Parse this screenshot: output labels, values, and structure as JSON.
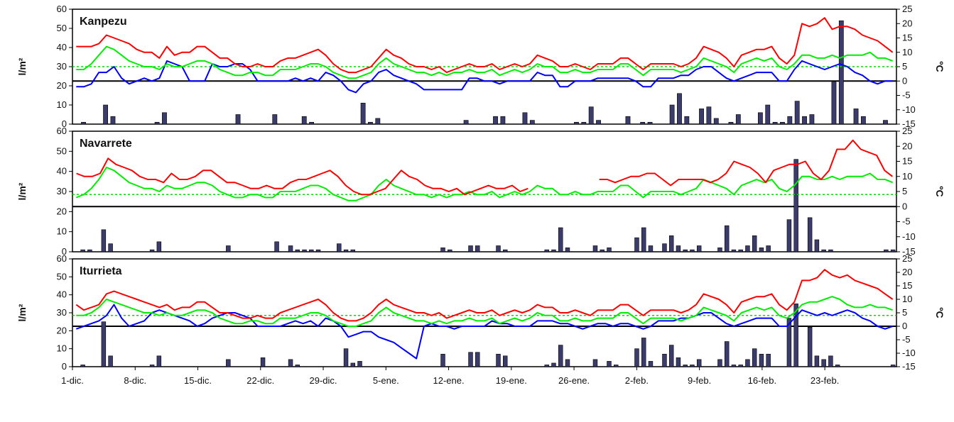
{
  "figure": {
    "x_axis_labels": [
      "1-dic.",
      "8-dic.",
      "15-dic.",
      "22-dic.",
      "29-dic.",
      "5-ene.",
      "12-ene.",
      "19-ene.",
      "26-ene.",
      "2-feb.",
      "9-feb.",
      "16-feb.",
      "23-feb."
    ]
  },
  "colors": {
    "tmax": "#ff0000",
    "tmean": "#00ee00",
    "tmin": "#0000ff",
    "tnormal": "#00dd00",
    "bar": "#3c3c6c",
    "axis": "#000000"
  },
  "chart_data": [
    {
      "type": "bar+line",
      "title": "Kanpezu",
      "ylabel": "l/m²",
      "y2label": "ºC",
      "ylim": [
        0,
        60
      ],
      "y2lim": [
        -15,
        25
      ],
      "yticks": [
        0,
        10,
        20,
        30,
        40,
        50,
        60
      ],
      "y2ticks": [
        -15,
        -10,
        -5,
        0,
        5,
        10,
        15,
        20,
        25
      ],
      "x_start": "1-dic.",
      "x_days": 92,
      "precip": [
        0,
        1,
        0,
        0,
        10,
        4,
        0,
        0,
        0,
        0,
        0,
        1,
        6,
        0,
        0,
        0,
        0,
        0,
        0,
        0,
        0,
        0,
        5,
        0,
        0,
        0,
        0,
        5,
        0,
        0,
        0,
        4,
        1,
        0,
        0,
        0,
        0,
        0,
        0,
        11,
        1,
        3,
        0,
        0,
        0,
        0,
        0,
        0,
        0,
        0,
        0,
        0,
        0,
        2,
        0,
        0,
        0,
        4,
        4,
        0,
        0,
        6,
        2,
        0,
        0,
        0,
        0,
        0,
        1,
        1,
        9,
        2,
        0,
        0,
        0,
        4,
        0,
        1,
        1,
        0,
        0,
        10,
        16,
        4,
        0,
        8,
        9,
        3,
        0,
        1,
        5,
        0,
        0,
        6,
        10,
        1,
        1,
        4,
        12,
        4,
        5,
        0,
        0,
        22,
        54,
        0,
        8,
        4,
        0,
        0,
        2,
        0
      ],
      "tmax": [
        12,
        12,
        12,
        13,
        16,
        15,
        14,
        13,
        11,
        10,
        10,
        8,
        12,
        9,
        10,
        10,
        12,
        12,
        10,
        8,
        8,
        6,
        5,
        5,
        6,
        5,
        5,
        7,
        8,
        8,
        9,
        10,
        11,
        9,
        6,
        4,
        3,
        3,
        4,
        5,
        8,
        11,
        9,
        8,
        6,
        5,
        5,
        4,
        5,
        3,
        4,
        5,
        6,
        5,
        5,
        6,
        4,
        5,
        6,
        5,
        6,
        9,
        8,
        7,
        5,
        5,
        6,
        5,
        4,
        6,
        6,
        6,
        8,
        8,
        6,
        4,
        6,
        6,
        6,
        6,
        5,
        6,
        8,
        12,
        11,
        10,
        8,
        5,
        9,
        10,
        11,
        11,
        12,
        8,
        6,
        9,
        20,
        19,
        20,
        22,
        18,
        19,
        19,
        18,
        16,
        15,
        14,
        12,
        10
      ],
      "tmean": [
        4,
        4,
        6,
        9,
        12,
        11,
        9,
        7,
        6,
        5,
        5,
        4,
        6,
        5,
        5,
        6,
        7,
        7,
        6,
        4,
        3,
        2,
        2,
        3,
        3,
        2,
        2,
        4,
        4,
        4,
        5,
        6,
        6,
        5,
        3,
        2,
        1,
        1,
        2,
        3,
        6,
        8,
        6,
        5,
        4,
        3,
        3,
        2,
        3,
        2,
        3,
        3,
        4,
        3,
        3,
        4,
        2,
        3,
        4,
        3,
        4,
        6,
        5,
        5,
        3,
        3,
        4,
        3,
        3,
        4,
        4,
        4,
        6,
        6,
        4,
        2,
        4,
        4,
        4,
        4,
        3,
        4,
        5,
        8,
        7,
        6,
        5,
        3,
        6,
        7,
        8,
        7,
        8,
        5,
        4,
        6,
        9,
        9,
        8,
        8,
        9,
        8,
        9,
        9,
        9,
        10,
        8,
        8,
        7
      ],
      "tmin": [
        -2,
        -2,
        -1,
        3,
        3,
        5,
        1,
        -1,
        0,
        1,
        0,
        1,
        7,
        6,
        5,
        0,
        0,
        0,
        6,
        5,
        5,
        6,
        6,
        4,
        0,
        0,
        0,
        0,
        0,
        1,
        0,
        1,
        0,
        3,
        2,
        0,
        -3,
        -4,
        -1,
        0,
        3,
        4,
        2,
        1,
        0,
        -1,
        -3,
        -3,
        -3,
        -3,
        -3,
        -3,
        1,
        1,
        0,
        0,
        -1,
        0,
        0,
        0,
        0,
        3,
        2,
        2,
        -2,
        -2,
        0,
        0,
        0,
        1,
        1,
        1,
        1,
        1,
        0,
        -2,
        -2,
        1,
        1,
        1,
        2,
        2,
        4,
        5,
        5,
        3,
        1,
        0,
        1,
        2,
        3,
        3,
        3,
        0,
        0,
        4,
        7,
        6,
        5,
        4,
        5,
        6,
        5,
        3,
        2,
        0,
        -1,
        0,
        0
      ],
      "tnormal": 5
    },
    {
      "type": "bar+line",
      "title": "Navarrete",
      "ylabel": "l/m²",
      "y2label": "ºC",
      "ylim": [
        0,
        60
      ],
      "y2lim": [
        -15,
        25
      ],
      "yticks": [
        0,
        10,
        20,
        30,
        40,
        50,
        60
      ],
      "y2ticks": [
        -15,
        -10,
        -5,
        0,
        5,
        10,
        15,
        20,
        25
      ],
      "x_start": "1-dic.",
      "x_days": 92,
      "precip": [
        0,
        1,
        1,
        0,
        11,
        4,
        0,
        0,
        0,
        0,
        0,
        1,
        5,
        0,
        0,
        0,
        0,
        0,
        0,
        0,
        0,
        0,
        3,
        0,
        0,
        0,
        0,
        0,
        0,
        5,
        0,
        3,
        1,
        1,
        1,
        1,
        0,
        0,
        4,
        1,
        1,
        0,
        0,
        0,
        0,
        0,
        0,
        0,
        0,
        0,
        0,
        0,
        0,
        2,
        1,
        0,
        0,
        3,
        3,
        0,
        0,
        3,
        1,
        0,
        0,
        0,
        0,
        0,
        1,
        1,
        12,
        2,
        0,
        0,
        0,
        3,
        1,
        2,
        0,
        0,
        0,
        7,
        12,
        3,
        0,
        4,
        8,
        3,
        1,
        1,
        3,
        0,
        0,
        2,
        13,
        1,
        1,
        3,
        8,
        2,
        3,
        0,
        0,
        16,
        46,
        0,
        17,
        6,
        1,
        1,
        0,
        0,
        0,
        0,
        0,
        0,
        0,
        1,
        1
      ],
      "tmax": [
        11,
        10,
        10,
        11,
        16,
        14,
        13,
        12,
        10,
        9,
        9,
        8,
        11,
        9,
        9,
        10,
        12,
        12,
        10,
        8,
        8,
        7,
        6,
        6,
        7,
        6,
        6,
        8,
        9,
        9,
        10,
        11,
        12,
        10,
        7,
        5,
        4,
        4,
        5,
        6,
        9,
        12,
        10,
        9,
        7,
        6,
        6,
        5,
        6,
        4,
        5,
        6,
        7,
        6,
        6,
        7,
        5,
        6,
        null,
        null,
        null,
        null,
        null,
        null,
        null,
        null,
        9,
        9,
        8,
        9,
        10,
        10,
        11,
        11,
        9,
        7,
        9,
        9,
        9,
        9,
        8,
        9,
        11,
        15,
        14,
        13,
        11,
        8,
        12,
        13,
        14,
        14,
        15,
        11,
        9,
        12,
        19,
        19,
        22,
        19,
        18,
        17,
        12,
        10
      ],
      "tmean": [
        3,
        4,
        6,
        9,
        13,
        12,
        10,
        8,
        7,
        6,
        6,
        5,
        7,
        6,
        6,
        7,
        8,
        8,
        7,
        5,
        4,
        3,
        3,
        4,
        4,
        3,
        3,
        5,
        5,
        5,
        6,
        7,
        7,
        6,
        4,
        3,
        2,
        2,
        3,
        4,
        7,
        9,
        7,
        6,
        5,
        4,
        4,
        3,
        4,
        3,
        4,
        4,
        5,
        4,
        4,
        5,
        3,
        4,
        5,
        4,
        5,
        7,
        6,
        6,
        4,
        4,
        5,
        4,
        4,
        5,
        5,
        5,
        7,
        7,
        5,
        3,
        5,
        5,
        5,
        5,
        4,
        5,
        6,
        9,
        8,
        7,
        6,
        4,
        7,
        8,
        9,
        8,
        9,
        6,
        5,
        7,
        10,
        10,
        9,
        9,
        10,
        9,
        10,
        10,
        10,
        11,
        9,
        9,
        8
      ],
      "tnormal": 4
    },
    {
      "type": "bar+line",
      "title": "Iturrieta",
      "ylabel": "l/m²",
      "y2label": "ºC",
      "ylim": [
        0,
        60
      ],
      "y2lim": [
        -15,
        25
      ],
      "yticks": [
        0,
        10,
        20,
        30,
        40,
        50,
        60
      ],
      "y2ticks": [
        -15,
        -10,
        -5,
        0,
        5,
        10,
        15,
        20,
        25
      ],
      "x_start": "1-dic.",
      "x_days": 92,
      "precip": [
        0,
        1,
        0,
        0,
        25,
        6,
        0,
        0,
        0,
        0,
        0,
        1,
        6,
        0,
        0,
        0,
        0,
        0,
        0,
        0,
        0,
        0,
        4,
        0,
        0,
        0,
        0,
        5,
        0,
        0,
        0,
        4,
        1,
        0,
        0,
        0,
        0,
        0,
        0,
        10,
        2,
        3,
        0,
        0,
        0,
        0,
        0,
        0,
        0,
        0,
        0,
        0,
        0,
        7,
        0,
        0,
        0,
        8,
        8,
        0,
        0,
        7,
        6,
        0,
        0,
        0,
        0,
        0,
        1,
        2,
        12,
        4,
        0,
        0,
        0,
        4,
        0,
        3,
        1,
        0,
        0,
        10,
        16,
        3,
        0,
        7,
        12,
        5,
        1,
        1,
        4,
        0,
        0,
        4,
        14,
        1,
        1,
        4,
        10,
        7,
        7,
        0,
        0,
        27,
        35,
        0,
        22,
        6,
        4,
        6,
        1,
        0,
        0,
        0,
        0,
        0,
        0,
        0,
        1
      ],
      "tmax": [
        8,
        6,
        7,
        8,
        12,
        13,
        12,
        11,
        10,
        9,
        8,
        7,
        8,
        6,
        7,
        7,
        9,
        9,
        7,
        5,
        5,
        4,
        3,
        3,
        4,
        3,
        3,
        5,
        6,
        7,
        8,
        9,
        10,
        8,
        5,
        3,
        2,
        2,
        3,
        5,
        8,
        10,
        8,
        7,
        6,
        5,
        5,
        4,
        5,
        3,
        4,
        5,
        6,
        5,
        5,
        6,
        4,
        5,
        6,
        5,
        6,
        8,
        7,
        7,
        5,
        5,
        6,
        5,
        4,
        6,
        6,
        6,
        8,
        8,
        6,
        4,
        6,
        6,
        6,
        6,
        5,
        6,
        8,
        12,
        11,
        10,
        8,
        5,
        9,
        10,
        11,
        11,
        12,
        8,
        6,
        9,
        17,
        17,
        18,
        21,
        19,
        18,
        19,
        17,
        16,
        15,
        14,
        12,
        10
      ],
      "tmean": [
        4,
        4,
        5,
        7,
        10,
        9,
        8,
        7,
        6,
        5,
        5,
        4,
        5,
        4,
        4,
        5,
        6,
        6,
        5,
        3,
        2,
        1,
        1,
        2,
        2,
        1,
        1,
        3,
        3,
        3,
        4,
        5,
        5,
        4,
        2,
        1,
        0,
        0,
        1,
        2,
        5,
        7,
        5,
        4,
        3,
        2,
        2,
        1,
        2,
        1,
        2,
        2,
        3,
        2,
        2,
        3,
        1,
        2,
        3,
        2,
        3,
        5,
        4,
        4,
        2,
        2,
        3,
        2,
        2,
        3,
        3,
        3,
        5,
        5,
        3,
        1,
        3,
        3,
        3,
        3,
        2,
        3,
        4,
        7,
        6,
        5,
        4,
        2,
        5,
        6,
        7,
        6,
        7,
        4,
        3,
        5,
        8,
        9,
        9,
        10,
        11,
        10,
        8,
        7,
        7,
        8,
        7,
        7,
        6
      ],
      "tmin": [
        -1,
        0,
        1,
        2,
        4,
        8,
        3,
        0,
        1,
        2,
        5,
        6,
        5,
        4,
        3,
        2,
        0,
        1,
        3,
        4,
        5,
        5,
        4,
        3,
        0,
        0,
        0,
        0,
        1,
        2,
        1,
        2,
        0,
        3,
        2,
        0,
        -4,
        -3,
        -2,
        -2,
        -4,
        -5,
        -6,
        -8,
        -10,
        -12,
        0,
        1,
        0,
        0,
        -1,
        0,
        0,
        0,
        0,
        2,
        1,
        1,
        0,
        0,
        0,
        2,
        2,
        2,
        1,
        1,
        0,
        -1,
        0,
        1,
        1,
        0,
        1,
        1,
        0,
        -1,
        0,
        2,
        2,
        2,
        3,
        3,
        4,
        5,
        5,
        3,
        1,
        0,
        1,
        2,
        3,
        3,
        3,
        0,
        0,
        3,
        6,
        5,
        4,
        5,
        4,
        5,
        6,
        5,
        3,
        2,
        0,
        -1,
        0
      ],
      "tnormal": 4
    }
  ]
}
